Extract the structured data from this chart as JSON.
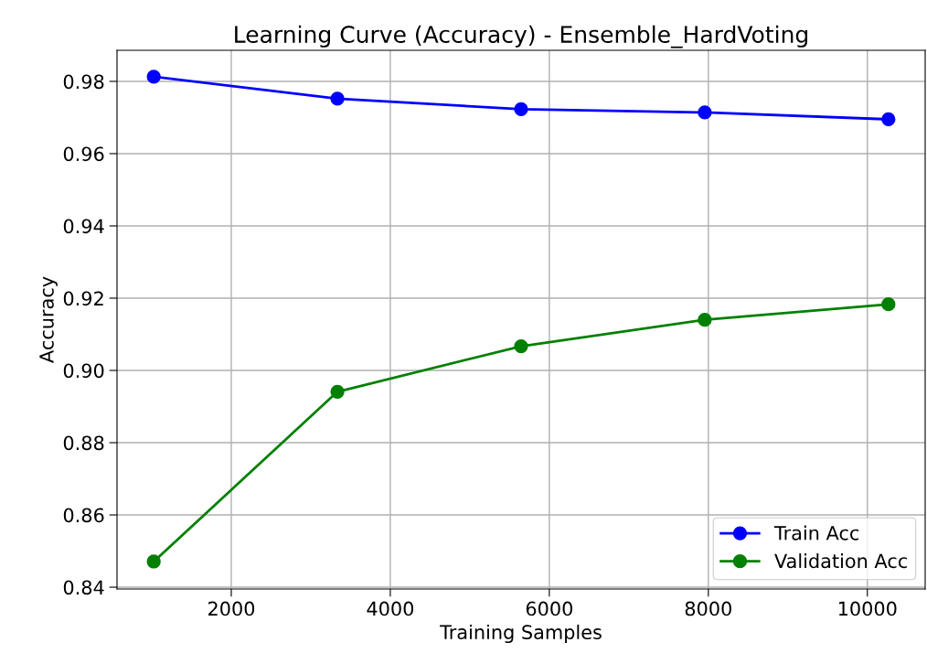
{
  "chart_data": {
    "type": "line",
    "title": "Learning Curve (Accuracy) - Ensemble_HardVoting",
    "xlabel": "Training Samples",
    "ylabel": "Accuracy",
    "x": [
      1025,
      3335,
      5645,
      7955,
      10265
    ],
    "series": [
      {
        "name": "Train Acc",
        "color": "#0000ff",
        "values": [
          0.9813,
          0.9752,
          0.9723,
          0.9714,
          0.9695
        ]
      },
      {
        "name": "Validation Acc",
        "color": "#008000",
        "values": [
          0.8471,
          0.8941,
          0.9067,
          0.914,
          0.9183
        ]
      }
    ],
    "xlim": [
      563,
      10727
    ],
    "xticks": [
      2000,
      4000,
      6000,
      8000,
      10000
    ],
    "ylim": [
      0.8395,
      0.9886
    ],
    "yticks": [
      {
        "value": 0.84,
        "label": "0.84"
      },
      {
        "value": 0.86,
        "label": "0.86"
      },
      {
        "value": 0.88,
        "label": "0.88"
      },
      {
        "value": 0.9,
        "label": "0.90"
      },
      {
        "value": 0.92,
        "label": "0.92"
      },
      {
        "value": 0.94,
        "label": "0.94"
      },
      {
        "value": 0.96,
        "label": "0.96"
      },
      {
        "value": 0.98,
        "label": "0.98"
      }
    ],
    "grid": true,
    "legend": "lower right",
    "marker": "circle",
    "line_style": "solid"
  }
}
